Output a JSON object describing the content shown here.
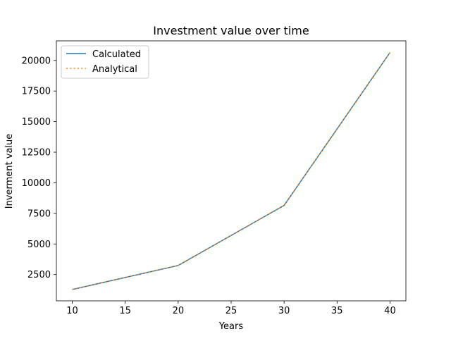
{
  "chart_data": {
    "type": "line",
    "title": "Investment value over time",
    "xlabel": "Years",
    "ylabel": "Inverment value",
    "x": [
      10,
      20,
      30,
      40
    ],
    "xlim": [
      8.5,
      41.5
    ],
    "ylim": [
      350,
      21600
    ],
    "xticks": [
      10,
      15,
      20,
      25,
      30,
      35,
      40
    ],
    "yticks": [
      2500,
      5000,
      7500,
      10000,
      12500,
      15000,
      17500,
      20000
    ],
    "grid": false,
    "legend_position": "upper-left",
    "series": [
      {
        "name": "Calculated",
        "values": [
          1280,
          3240,
          8150,
          20650
        ],
        "color": "#1f77b4",
        "linestyle": "solid"
      },
      {
        "name": "Analytical",
        "values": [
          1280,
          3240,
          8150,
          20650
        ],
        "color": "#ff7f0e",
        "linestyle": "dotted"
      }
    ]
  }
}
